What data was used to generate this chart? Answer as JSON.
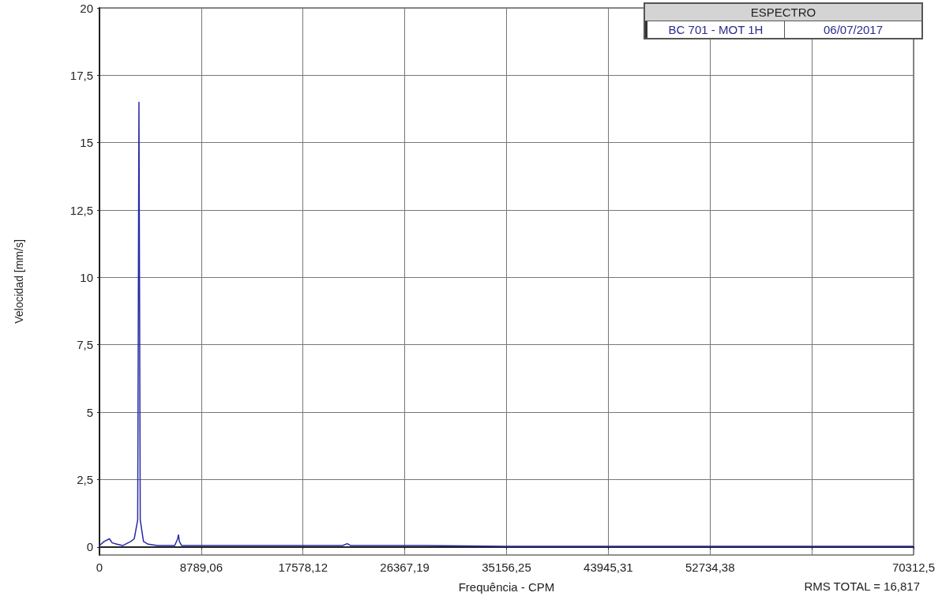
{
  "chart_data": {
    "type": "line",
    "title": "ESPECTRO",
    "xlabel": "Frequência - CPM",
    "ylabel": "Velocidad [mm/s]",
    "annotations": [
      "BC 701 - MOT 1H",
      "06/07/2017",
      "RMS TOTAL = 16,817"
    ],
    "x": [
      0,
      400,
      860,
      1100,
      1500,
      2000,
      2700,
      3000,
      3300,
      3408,
      3520,
      3800,
      4200,
      5000,
      6500,
      6750,
      6820,
      6900,
      7100,
      9000,
      12000,
      14000,
      21000,
      21400,
      21700,
      28000,
      35000,
      50000,
      70312.5
    ],
    "series": [
      {
        "color": "#2828a8",
        "values": [
          0.05,
          0.2,
          0.3,
          0.15,
          0.1,
          0.05,
          0.2,
          0.3,
          1,
          16.5,
          1,
          0.2,
          0.1,
          0.05,
          0.05,
          0.3,
          0.45,
          0.2,
          0.05,
          0.05,
          0.05,
          0.05,
          0.05,
          0.12,
          0.05,
          0.05,
          0.02,
          0.02,
          0.02
        ]
      }
    ],
    "xlim": [
      0,
      70312.5
    ],
    "xticks": [
      0,
      {
        "value": 8789.06,
        "label": "8789,06"
      },
      {
        "value": 17578.12,
        "label": "17578,12"
      },
      {
        "value": 26367.19,
        "label": "26367,19"
      },
      {
        "value": 35156.25,
        "label": "35156,25"
      },
      {
        "value": 43945.31,
        "label": "43945,31"
      },
      {
        "value": 52734.38,
        "label": "52734,38"
      },
      {
        "value": 61523.44,
        "label": null
      },
      {
        "value": 70312.5,
        "label": "70312,5"
      }
    ],
    "ylim": [
      -0.3,
      20
    ],
    "yticks": [
      0,
      {
        "value": 2.5,
        "label": "2,5"
      },
      5,
      {
        "value": 7.5,
        "label": "7,5"
      },
      10,
      {
        "value": 12.5,
        "label": "12,5"
      },
      15,
      {
        "value": 17.5,
        "label": "17,5"
      },
      20
    ],
    "grid": true,
    "marker": "none",
    "line_style": "solid"
  }
}
